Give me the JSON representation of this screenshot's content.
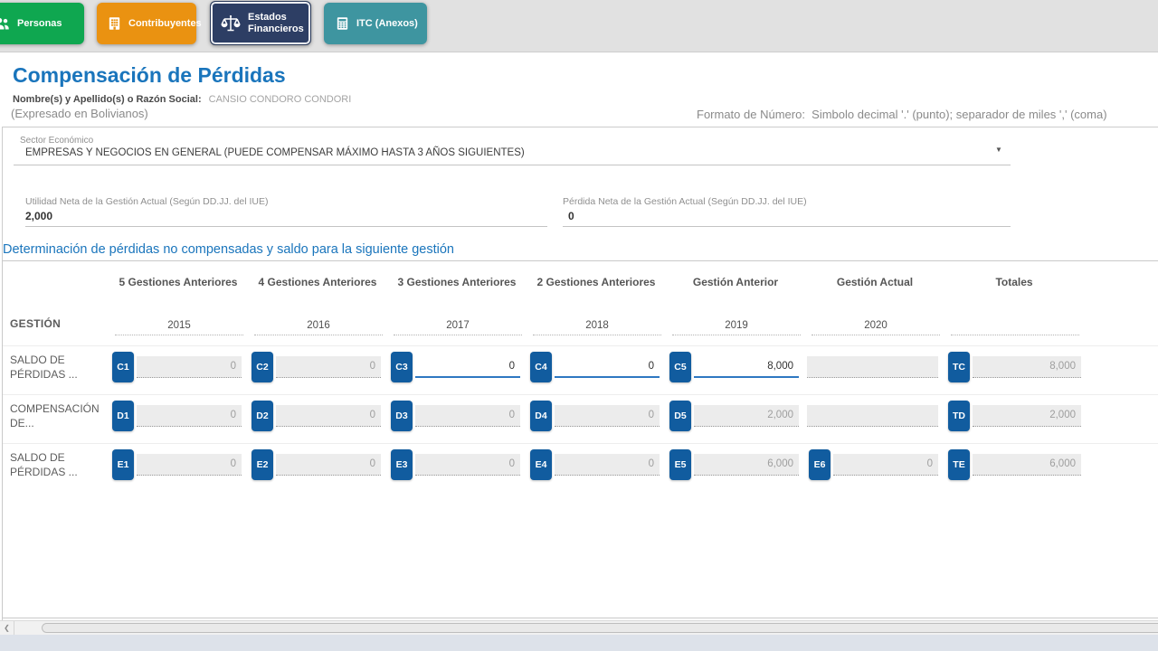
{
  "tabs": [
    {
      "label": "Personas",
      "color": "#0fa750",
      "icon": "people-icon",
      "selected": false
    },
    {
      "label": "Contribuyentes",
      "color": "#ea9211",
      "icon": "building-icon",
      "selected": false
    },
    {
      "label": "Estados Financieros",
      "color": "#2d3e64",
      "icon": "scales-icon",
      "selected": true
    },
    {
      "label": "ITC (Anexos)",
      "color": "#3e95a0",
      "icon": "calculator-icon",
      "selected": false
    }
  ],
  "header": {
    "title": "Compensación de Pérdidas",
    "name_label": "Nombre(s) y Apellido(s) o Razón Social:",
    "name_value": "CANSIO CONDORO CONDORI",
    "currency_note": "(Expresado en Bolivianos)",
    "number_format_note": "Formato de Número:  Simbolo decimal '.' (punto); separador de miles ',' (coma)"
  },
  "form": {
    "sector": {
      "label": "Sector Económico",
      "value": "EMPRESAS Y NEGOCIOS EN GENERAL (PUEDE COMPENSAR MÁXIMO HASTA 3 AÑOS SIGUIENTES)"
    },
    "utilidad": {
      "label": "Utilidad Neta de la Gestión Actual (Según DD.JJ. del IUE)",
      "value": "2,000"
    },
    "perdida": {
      "label": "Pérdida Neta de la Gestión Actual (Según DD.JJ. del IUE)",
      "value": "0"
    }
  },
  "section_title": "Determinación de pérdidas no compensadas y saldo para la siguiente gestión",
  "table": {
    "column_headers": [
      "5 Gestiones Anteriores",
      "4 Gestiones Anteriores",
      "3 Gestiones Anteriores",
      "2 Gestiones Anteriores",
      "Gestión Anterior",
      "Gestión Actual",
      "Totales"
    ],
    "gestion_row_label": "GESTIÓN",
    "years": [
      "2015",
      "2016",
      "2017",
      "2018",
      "2019",
      "2020"
    ],
    "rows": [
      {
        "label_line1": "SALDO DE",
        "label_line2": "PÉRDIDAS ...",
        "cells": [
          {
            "code": "C1",
            "value": "0",
            "editable": false
          },
          {
            "code": "C2",
            "value": "0",
            "editable": false
          },
          {
            "code": "C3",
            "value": "0",
            "editable": true
          },
          {
            "code": "C4",
            "value": "0",
            "editable": true
          },
          {
            "code": "C5",
            "value": "8,000",
            "editable": true
          },
          {
            "code": null,
            "value": "",
            "editable": false,
            "wide": true
          }
        ],
        "total": {
          "code": "TC",
          "value": "8,000"
        }
      },
      {
        "label_line1": "COMPENSACIÓN",
        "label_line2": "DE...",
        "cells": [
          {
            "code": "D1",
            "value": "0",
            "editable": false
          },
          {
            "code": "D2",
            "value": "0",
            "editable": false
          },
          {
            "code": "D3",
            "value": "0",
            "editable": false
          },
          {
            "code": "D4",
            "value": "0",
            "editable": false
          },
          {
            "code": "D5",
            "value": "2,000",
            "editable": false
          },
          {
            "code": null,
            "value": "",
            "editable": false,
            "wide": true
          }
        ],
        "total": {
          "code": "TD",
          "value": "2,000"
        }
      },
      {
        "label_line1": "SALDO DE",
        "label_line2": "PÉRDIDAS ...",
        "cells": [
          {
            "code": "E1",
            "value": "0",
            "editable": false
          },
          {
            "code": "E2",
            "value": "0",
            "editable": false
          },
          {
            "code": "E3",
            "value": "0",
            "editable": false
          },
          {
            "code": "E4",
            "value": "0",
            "editable": false
          },
          {
            "code": "E5",
            "value": "6,000",
            "editable": false
          },
          {
            "code": "E6",
            "value": "0",
            "editable": false
          }
        ],
        "total": {
          "code": "TE",
          "value": "6,000"
        }
      }
    ]
  },
  "scrollbar": {
    "left_arrow": "❮"
  },
  "colors": {
    "title_blue": "#1a75bc",
    "badge_blue": "#115c9f",
    "editable_underline": "#2e78c2",
    "disabled_bg": "#ececec",
    "topbar_bg": "#e1e1e1",
    "bottom_strip": "#dde2ea"
  }
}
